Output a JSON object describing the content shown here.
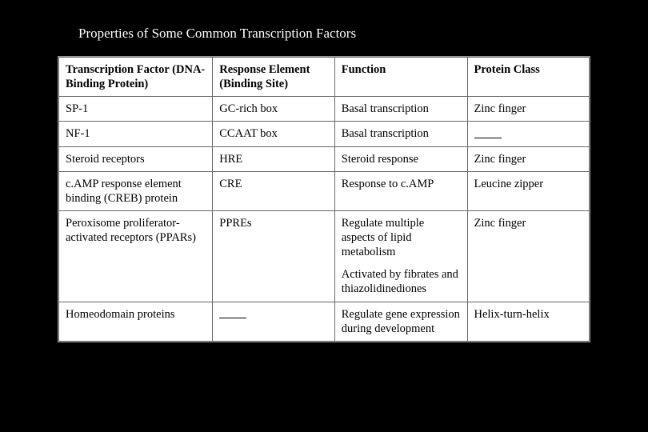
{
  "title": "Properties of Some Common Transcription Factors",
  "table": {
    "columns": [
      "Transcription Factor (DNA-Binding Protein)",
      "Response Element (Binding Site)",
      "Function",
      "Protein Class"
    ],
    "col_widths_pct": [
      29,
      23,
      25,
      23
    ],
    "rows": [
      {
        "factor": "SP-1",
        "element": "GC-rich box",
        "function": "Basal transcription",
        "function2": "",
        "class": "Zinc finger"
      },
      {
        "factor": "NF-1",
        "element": "CCAAT box",
        "function": "Basal transcription",
        "function2": "",
        "class": "—"
      },
      {
        "factor": "Steroid receptors",
        "element": "HRE",
        "function": "Steroid response",
        "function2": "",
        "class": "Zinc finger"
      },
      {
        "factor": "c.AMP response element binding (CREB) protein",
        "element": "CRE",
        "function": "Response to c.AMP",
        "function2": "",
        "class": "Leucine zipper"
      },
      {
        "factor": "Peroxisome proliferator-activated receptors (PPARs)",
        "element": "PPREs",
        "function": "Regulate multiple aspects of lipid metabolism",
        "function2": "Activated by fibrates and thiazolidinediones",
        "class": "Zinc finger"
      },
      {
        "factor": "Homeodomain proteins",
        "element": "—",
        "function": "Regulate gene expression during development",
        "function2": "",
        "class": "Helix-turn-helix"
      }
    ],
    "border_color": "#686868",
    "background_color": "#ffffff",
    "page_background": "#000000",
    "text_color": "#000000",
    "title_color": "#ffffff",
    "font_family": "serif",
    "header_fontsize_pt": 11,
    "body_fontsize_pt": 11
  }
}
